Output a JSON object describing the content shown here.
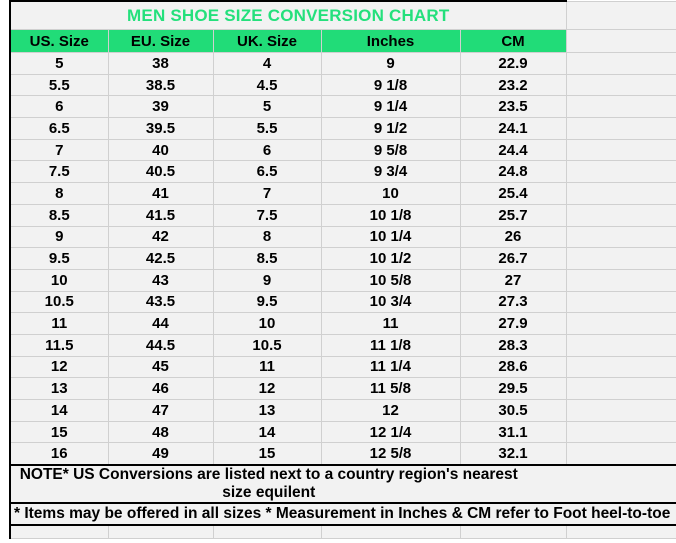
{
  "title": "MEN SHOE SIZE CONVERSION CHART",
  "colors": {
    "header_green": "#21DC78",
    "title_green": "#24E07C",
    "gridline_gray": "#D0D0D0",
    "cell_background": "#F2F2F2",
    "table_border_black": "#000000"
  },
  "chart_data": {
    "type": "table",
    "title": "MEN SHOE SIZE CONVERSION CHART",
    "columns": [
      "US. Size",
      "EU. Size",
      "UK. Size",
      "Inches",
      "CM"
    ],
    "rows": [
      [
        "5",
        "38",
        "4",
        "9",
        "22.9"
      ],
      [
        "5.5",
        "38.5",
        "4.5",
        "9 1/8",
        "23.2"
      ],
      [
        "6",
        "39",
        "5",
        "9 1/4",
        "23.5"
      ],
      [
        "6.5",
        "39.5",
        "5.5",
        "9 1/2",
        "24.1"
      ],
      [
        "7",
        "40",
        "6",
        "9 5/8",
        "24.4"
      ],
      [
        "7.5",
        "40.5",
        "6.5",
        "9 3/4",
        "24.8"
      ],
      [
        "8",
        "41",
        "7",
        "10",
        "25.4"
      ],
      [
        "8.5",
        "41.5",
        "7.5",
        "10 1/8",
        "25.7"
      ],
      [
        "9",
        "42",
        "8",
        "10 1/4",
        "26"
      ],
      [
        "9.5",
        "42.5",
        "8.5",
        "10 1/2",
        "26.7"
      ],
      [
        "10",
        "43",
        "9",
        "10 5/8",
        "27"
      ],
      [
        "10.5",
        "43.5",
        "9.5",
        "10 3/4",
        "27.3"
      ],
      [
        "11",
        "44",
        "10",
        "11",
        "27.9"
      ],
      [
        "11.5",
        "44.5",
        "10.5",
        "11 1/8",
        "28.3"
      ],
      [
        "12",
        "45",
        "11",
        "11 1/4",
        "28.6"
      ],
      [
        "13",
        "46",
        "12",
        "11 5/8",
        "29.5"
      ],
      [
        "14",
        "47",
        "13",
        "12",
        "30.5"
      ],
      [
        "15",
        "48",
        "14",
        "12 1/4",
        "31.1"
      ],
      [
        "16",
        "49",
        "15",
        "12 5/8",
        "32.1"
      ]
    ],
    "layout_hints": {
      "grid": true,
      "header_fill": "green",
      "title_position": "top-center"
    }
  },
  "notes": {
    "note1": "NOTE* US Conversions are listed next to a country region's nearest size equilent",
    "note2": "* Items may be offered in all sizes * Measurement in Inches & CM refer to Foot heel-to-toe"
  }
}
